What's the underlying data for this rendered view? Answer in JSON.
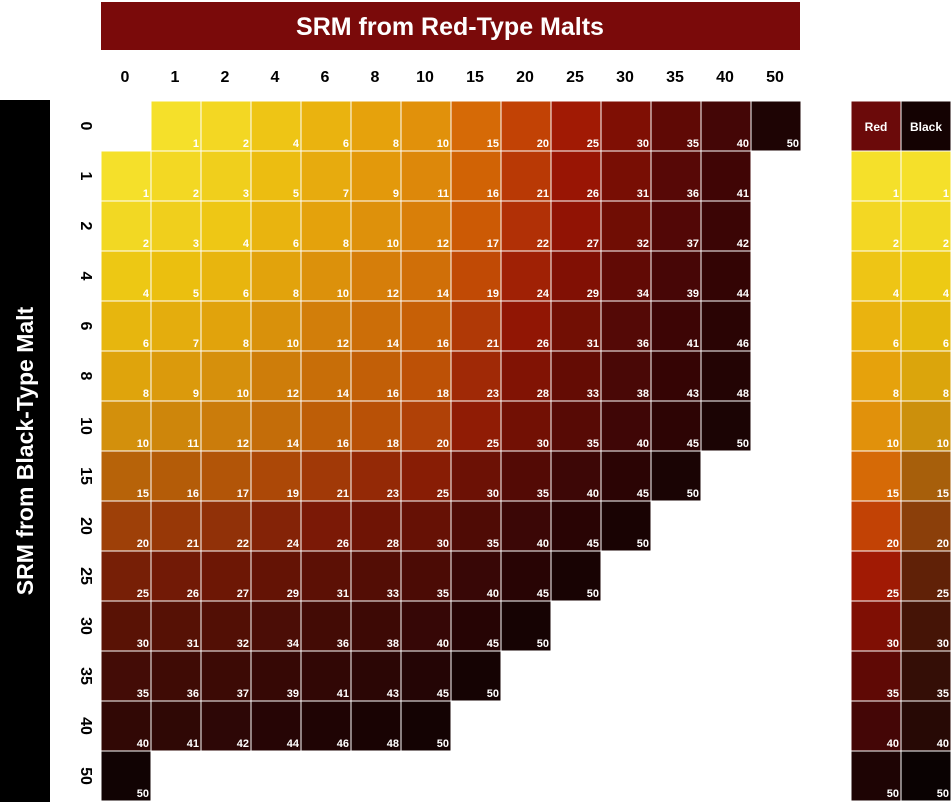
{
  "chart_data": {
    "type": "heatmap",
    "title": "SRM from Red-Type Malts",
    "xlabel": "SRM from Red-Type Malts",
    "ylabel": "SRM from Black-Type Malt",
    "x_categories": [
      "0",
      "1",
      "2",
      "4",
      "6",
      "8",
      "10",
      "15",
      "20",
      "25",
      "30",
      "35",
      "40",
      "50"
    ],
    "y_categories": [
      "0",
      "1",
      "2",
      "4",
      "6",
      "8",
      "10",
      "15",
      "20",
      "25",
      "30",
      "35",
      "40",
      "50"
    ],
    "rows": [
      [
        null,
        1,
        2,
        4,
        6,
        8,
        10,
        15,
        20,
        25,
        30,
        35,
        40,
        50
      ],
      [
        1,
        2,
        3,
        5,
        7,
        9,
        11,
        16,
        21,
        26,
        31,
        36,
        41,
        null
      ],
      [
        2,
        3,
        4,
        6,
        8,
        10,
        12,
        17,
        22,
        27,
        32,
        37,
        42,
        null
      ],
      [
        4,
        5,
        6,
        8,
        10,
        12,
        14,
        19,
        24,
        29,
        34,
        39,
        44,
        null
      ],
      [
        6,
        7,
        8,
        10,
        12,
        14,
        16,
        21,
        26,
        31,
        36,
        41,
        46,
        null
      ],
      [
        8,
        9,
        10,
        12,
        14,
        16,
        18,
        23,
        28,
        33,
        38,
        43,
        48,
        null
      ],
      [
        10,
        11,
        12,
        14,
        16,
        18,
        20,
        25,
        30,
        35,
        40,
        45,
        50,
        null
      ],
      [
        15,
        16,
        17,
        19,
        21,
        23,
        25,
        30,
        35,
        40,
        45,
        50,
        null,
        null
      ],
      [
        20,
        21,
        22,
        24,
        26,
        28,
        30,
        35,
        40,
        45,
        50,
        null,
        null,
        null
      ],
      [
        25,
        26,
        27,
        29,
        31,
        33,
        35,
        40,
        45,
        50,
        null,
        null,
        null,
        null
      ],
      [
        30,
        31,
        32,
        34,
        36,
        38,
        40,
        45,
        50,
        null,
        null,
        null,
        null,
        null
      ],
      [
        35,
        36,
        37,
        39,
        41,
        43,
        45,
        50,
        null,
        null,
        null,
        null,
        null,
        null
      ],
      [
        40,
        41,
        42,
        44,
        46,
        48,
        50,
        null,
        null,
        null,
        null,
        null,
        null,
        null
      ],
      [
        50,
        null,
        null,
        null,
        null,
        null,
        null,
        null,
        null,
        null,
        null,
        null,
        null,
        null
      ]
    ],
    "legend": {
      "columns": [
        "Red",
        "Black"
      ],
      "values": [
        1,
        2,
        4,
        6,
        8,
        10,
        15,
        20,
        25,
        30,
        35,
        40,
        50
      ]
    },
    "colors": {
      "title_bg": "#7a0a0a",
      "side_title_bg": "#000000",
      "legend_red_head": "#6b0a0a",
      "legend_black_head": "#140202",
      "cell_border": "#ffffff",
      "label_text": "#ffffff",
      "red_scale_stops": [
        "#f5e02a",
        "#edc012",
        "#e6a20c",
        "#de840a",
        "#d66a06",
        "#cc5004",
        "#b43006",
        "#9e1604",
        "#861004",
        "#6f0c04",
        "#580806",
        "#460606",
        "#380404",
        "#2a0404",
        "#1e0404"
      ],
      "black_scale_stops": [
        "#f5e02a",
        "#ebc40e",
        "#d8a00c",
        "#b8760c",
        "#a0560a",
        "#8c400a",
        "#6a2608",
        "#501806",
        "#401206",
        "#340e06",
        "#2a0a04",
        "#220806",
        "#140404",
        "#0a0202"
      ]
    },
    "grid": true,
    "legend_placement": "right"
  }
}
